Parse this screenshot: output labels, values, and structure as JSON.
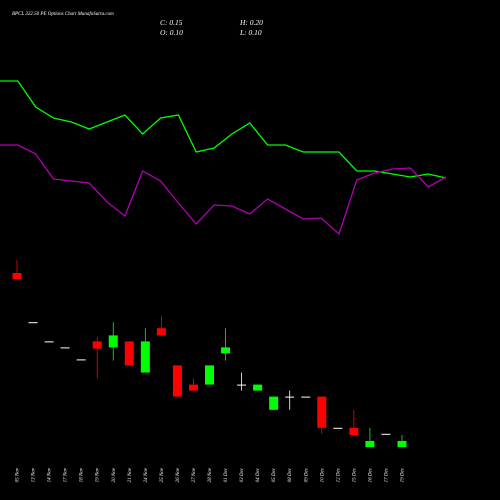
{
  "chart_data": [
    {
      "type": "line",
      "series": [
        {
          "color": "#00ff00",
          "values": [
            84.5,
            84.5,
            71.5,
            66,
            64,
            60.5,
            64,
            67.5,
            58,
            66,
            67.5,
            49,
            51,
            58,
            63.5,
            52.5,
            52.5,
            49,
            49,
            49,
            39.5,
            39.5,
            38,
            36.5,
            38,
            36
          ]
        },
        {
          "color": "#b000b0",
          "values": [
            52.5,
            52.5,
            48,
            35.5,
            34.5,
            33.5,
            24,
            17,
            39.5,
            34.5,
            23.5,
            13,
            22.5,
            22,
            18,
            25.5,
            20.5,
            15.5,
            16,
            8,
            35,
            38.5,
            40.5,
            41,
            31.5,
            36.5
          ]
        }
      ],
      "ylim": [
        0,
        100
      ]
    },
    {
      "type": "candlestick",
      "title": "BPCL 322.50 PE Options Chart MunafaSutra.com",
      "close_label": "C: 0.15",
      "high_label": "H: 0.20",
      "open_label": "O: 0.10",
      "low_label": "L: 0.10",
      "categories": [
        "05 Nov",
        "13 Nov",
        "14 Nov",
        "17 Nov",
        "18 Nov",
        "19 Nov",
        "20 Nov",
        "21 Nov",
        "24 Nov",
        "25 Nov",
        "26 Nov",
        "27 Nov",
        "28 Nov",
        "01 Dec",
        "03 Dec",
        "04 Dec",
        "05 Dec",
        "08 Dec",
        "09 Dec",
        "10 Dec",
        "12 Dec",
        "15 Dec",
        "16 Dec",
        "17 Dec",
        "19 Dec"
      ],
      "open": [
        1.55,
        1.14,
        0.98,
        0.93,
        0.83,
        0.98,
        0.93,
        0.98,
        0.72,
        1.09,
        0.78,
        0.62,
        0.62,
        0.88,
        0.62,
        0.57,
        0.41,
        0.52,
        0.52,
        0.52,
        0.26,
        0.26,
        0.1,
        0.21,
        0.1
      ],
      "high": [
        1.66,
        1.14,
        0.98,
        0.93,
        0.83,
        1.02,
        1.14,
        0.98,
        1.09,
        1.19,
        0.78,
        0.67,
        0.78,
        1.09,
        0.72,
        0.62,
        0.52,
        0.57,
        0.52,
        0.52,
        0.26,
        0.41,
        0.26,
        0.21,
        0.2
      ],
      "low": [
        1.5,
        1.14,
        0.98,
        0.93,
        0.83,
        0.67,
        0.82,
        0.78,
        0.72,
        1.03,
        0.52,
        0.57,
        0.62,
        0.82,
        0.57,
        0.57,
        0.41,
        0.41,
        0.52,
        0.21,
        0.26,
        0.2,
        0.1,
        0.21,
        0.1
      ],
      "close": [
        1.5,
        1.14,
        0.98,
        0.93,
        0.83,
        0.92,
        1.03,
        0.78,
        0.98,
        1.03,
        0.52,
        0.57,
        0.78,
        0.93,
        0.62,
        0.62,
        0.52,
        0.52,
        0.52,
        0.26,
        0.26,
        0.2,
        0.15,
        0.21,
        0.15
      ],
      "up_color": "#00ff00",
      "down_color": "#ff0000",
      "flat_color": "#ffffff",
      "ylim": [
        0,
        1.75
      ]
    }
  ]
}
